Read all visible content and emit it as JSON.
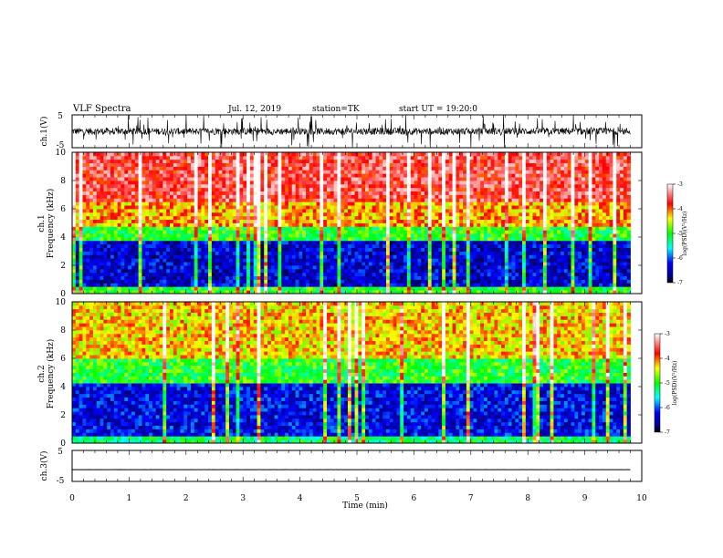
{
  "header": {
    "title": "VLF Spectra",
    "date": "Jul. 12, 2019",
    "station": "station=TK",
    "start": "start UT = 19:20:0"
  },
  "chart_data": [
    {
      "type": "line",
      "name": "ch1-waveform",
      "ylabel": "ch.1(V)",
      "ylim": [
        -5,
        5
      ],
      "yticks": [
        "5",
        "-5"
      ],
      "xlim": [
        0,
        10
      ],
      "baseline": 0,
      "amplitude": 3
    },
    {
      "type": "heatmap",
      "name": "ch1-spectrogram",
      "ylabel_top": "ch.1",
      "ylabel": "Frequency (kHz)",
      "ylim": [
        0,
        10
      ],
      "yticks": [
        "0",
        "2",
        "4",
        "6",
        "8",
        "10"
      ],
      "xlim": [
        0,
        9.8
      ],
      "colorbar": {
        "label": "log(PSD)(V²/Hz)",
        "range": [
          -7,
          -3
        ],
        "ticks": [
          "-3",
          "-4",
          "-5",
          "-6",
          "-7"
        ]
      },
      "bands_log_psd": [
        {
          "fmin": 0,
          "fmax": 0.5,
          "value": -5.0
        },
        {
          "fmin": 0.5,
          "fmax": 3.7,
          "value": -6.4
        },
        {
          "fmin": 3.7,
          "fmax": 4.8,
          "value": -5.0
        },
        {
          "fmin": 4.8,
          "fmax": 6.5,
          "value": -4.2
        },
        {
          "fmin": 6.5,
          "fmax": 10,
          "value": -3.6
        }
      ]
    },
    {
      "type": "heatmap",
      "name": "ch2-spectrogram",
      "ylabel_top": "ch.2",
      "ylabel": "Frequency (kHz)",
      "ylim": [
        0,
        10
      ],
      "yticks": [
        "0",
        "2",
        "4",
        "6",
        "8",
        "10"
      ],
      "xlim": [
        0,
        9.8
      ],
      "colorbar": {
        "label": "log(PSD)(V²/Hz)",
        "range": [
          -7,
          -3
        ],
        "ticks": [
          "-3",
          "-4",
          "-5",
          "-6",
          "-7"
        ]
      },
      "bands_log_psd": [
        {
          "fmin": 0,
          "fmax": 0.4,
          "value": -5.2
        },
        {
          "fmin": 0.4,
          "fmax": 4.2,
          "value": -6.3
        },
        {
          "fmin": 4.2,
          "fmax": 6.0,
          "value": -5.0
        },
        {
          "fmin": 6.0,
          "fmax": 10,
          "value": -4.3
        }
      ]
    },
    {
      "type": "line",
      "name": "ch3-waveform",
      "ylabel": "ch.3(V)",
      "ylim": [
        -5,
        5
      ],
      "yticks": [
        "5",
        "-5"
      ],
      "xlim": [
        0,
        10
      ],
      "baseline": -1.2,
      "amplitude": 0.05
    }
  ],
  "x_axis": {
    "label": "Time (min)",
    "range": [
      0,
      10
    ],
    "ticks": [
      "0",
      "1",
      "2",
      "3",
      "4",
      "5",
      "6",
      "7",
      "8",
      "9",
      "10"
    ]
  }
}
